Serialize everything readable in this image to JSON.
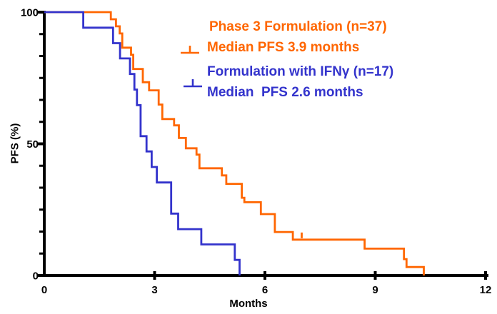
{
  "figure": {
    "background": "#FFFFFF"
  },
  "axes": {
    "x_title": "Months",
    "y_title": "PFS (%)",
    "x_ticks": [
      0,
      3,
      6,
      9,
      12
    ],
    "x_tick_labels": [
      "0",
      "3",
      "6",
      "9",
      "12"
    ],
    "y_major_ticks": [
      100,
      50,
      0
    ],
    "y_tick_labels": [
      "100",
      "50",
      "0"
    ],
    "y_minor_divisions": 12,
    "axis_color": "#000000"
  },
  "legend": {
    "entries": [
      {
        "line1": "Phase 3 Formulation (n=37)",
        "line2": "Median PFS 3.9 months",
        "color": "#FF6600",
        "symbol": "censor-tick"
      },
      {
        "line1": "Formulation with IFNγ (n=17)",
        "line2": "Median  PFS 2.6 months",
        "color": "#3333CC",
        "symbol": "censor-tick"
      }
    ]
  },
  "chart_data": {
    "type": "line",
    "subtype": "kaplan-meier-step",
    "title": "",
    "xlabel": "Months",
    "ylabel": "PFS (%)",
    "xlim": [
      0,
      12
    ],
    "ylim": [
      0,
      100
    ],
    "grid": false,
    "legend_position": "top-right",
    "series": [
      {
        "name": "Phase 3 Formulation (n=37)",
        "n": 37,
        "median_pfs_months": 3.9,
        "color": "#FF6600",
        "points": [
          [
            0,
            100
          ],
          [
            1.81,
            97.3
          ],
          [
            1.95,
            94.6
          ],
          [
            2.05,
            91.9
          ],
          [
            2.12,
            86.5
          ],
          [
            2.36,
            83.8
          ],
          [
            2.42,
            78.4
          ],
          [
            2.68,
            73.4
          ],
          [
            2.85,
            70.3
          ],
          [
            3.11,
            64.9
          ],
          [
            3.21,
            59.4
          ],
          [
            3.53,
            57.0
          ],
          [
            3.66,
            52.2
          ],
          [
            3.85,
            48.3
          ],
          [
            4.14,
            45.9
          ],
          [
            4.22,
            40.7
          ],
          [
            4.83,
            38.0
          ],
          [
            4.95,
            34.8
          ],
          [
            5.37,
            29.5
          ],
          [
            5.44,
            27.8
          ],
          [
            5.89,
            23.3
          ],
          [
            6.27,
            16.5
          ],
          [
            6.76,
            13.6
          ],
          [
            8.71,
            10.2
          ],
          [
            9.78,
            6.2
          ],
          [
            9.85,
            3.2
          ],
          [
            10.32,
            0
          ]
        ],
        "censor_marks": [
          [
            7.0,
            13.6
          ]
        ]
      },
      {
        "name": "Formulation with IFNγ (n=17)",
        "n": 17,
        "median_pfs_months": 2.6,
        "color": "#3333CC",
        "points": [
          [
            0,
            100
          ],
          [
            1.06,
            94.1
          ],
          [
            1.87,
            88.2
          ],
          [
            2.06,
            82.4
          ],
          [
            2.33,
            76.5
          ],
          [
            2.45,
            70.6
          ],
          [
            2.52,
            64.7
          ],
          [
            2.62,
            52.9
          ],
          [
            2.78,
            47.1
          ],
          [
            2.92,
            41.2
          ],
          [
            3.06,
            35.3
          ],
          [
            3.45,
            23.5
          ],
          [
            3.64,
            17.6
          ],
          [
            4.27,
            11.8
          ],
          [
            5.18,
            5.9
          ],
          [
            5.31,
            0
          ]
        ],
        "censor_marks": []
      }
    ]
  }
}
